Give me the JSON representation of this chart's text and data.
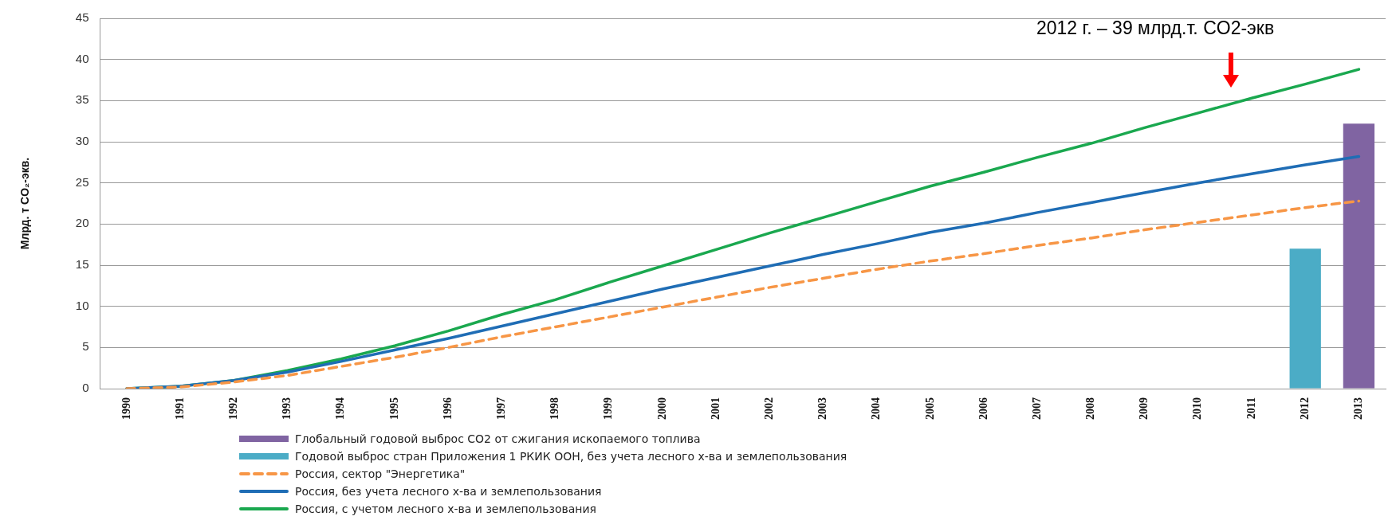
{
  "chart_data": {
    "type": "line",
    "ylabel": "Млрд. т CO₂-экв.",
    "categories": [
      "1990",
      "1991",
      "1992",
      "1993",
      "1994",
      "1995",
      "1996",
      "1997",
      "1998",
      "1999",
      "2000",
      "2001",
      "2002",
      "2003",
      "2004",
      "2005",
      "2006",
      "2007",
      "2008",
      "2009",
      "2010",
      "2011",
      "2012",
      "2013"
    ],
    "ylim": [
      0,
      45
    ],
    "yticks": [
      0,
      5,
      10,
      15,
      20,
      25,
      30,
      35,
      40,
      45
    ],
    "grid": "y",
    "legend": "bottom",
    "marker": "none",
    "annotations": [
      "2012 г. – 39 млрд.т. CO2-экв"
    ],
    "series": [
      {
        "name": "Глобальный годовой выброс CO2 от сжигания ископаемого топлива",
        "type": "bar",
        "color": "#8064a2",
        "values": [
          null,
          null,
          null,
          null,
          null,
          null,
          null,
          null,
          null,
          null,
          null,
          null,
          null,
          null,
          null,
          null,
          null,
          null,
          null,
          null,
          null,
          null,
          null,
          32.2
        ]
      },
      {
        "name": "Годовой выброс стран Приложения 1 РКИК ООН, без учета лесного х-ва и землепользования",
        "type": "bar",
        "color": "#4bacc6",
        "values": [
          null,
          null,
          null,
          null,
          null,
          null,
          null,
          null,
          null,
          null,
          null,
          null,
          null,
          null,
          null,
          null,
          null,
          null,
          null,
          null,
          null,
          null,
          17.0,
          null
        ]
      },
      {
        "name": "Россия, сектор \"Энергетика\"",
        "line_style": "dashed",
        "color": "#f79646",
        "values": [
          0,
          0.2,
          0.8,
          1.6,
          2.7,
          3.8,
          5.0,
          6.3,
          7.5,
          8.7,
          9.9,
          11.1,
          12.3,
          13.4,
          14.5,
          15.5,
          16.4,
          17.4,
          18.3,
          19.3,
          20.2,
          21.1,
          22.0,
          22.8
        ]
      },
      {
        "name": "Россия, без учета лесного х-ва и землепользования",
        "line_style": "solid",
        "color": "#1f6db5",
        "values": [
          0,
          0.3,
          1.0,
          2.0,
          3.3,
          4.7,
          6.1,
          7.6,
          9.1,
          10.6,
          12.1,
          13.5,
          14.9,
          16.3,
          17.6,
          19.0,
          20.1,
          21.4,
          22.6,
          23.8,
          25.0,
          26.1,
          27.2,
          28.2
        ]
      },
      {
        "name": "Россия, с учетом лесного х-ва и землепользования",
        "line_style": "solid",
        "color": "#1aa84f",
        "values": [
          0,
          0.3,
          1.0,
          2.2,
          3.6,
          5.2,
          7.0,
          9.0,
          10.8,
          12.9,
          14.9,
          16.9,
          18.9,
          20.8,
          22.7,
          24.6,
          26.3,
          28.1,
          29.8,
          31.7,
          33.5,
          35.3,
          37.0,
          38.8
        ]
      }
    ]
  }
}
